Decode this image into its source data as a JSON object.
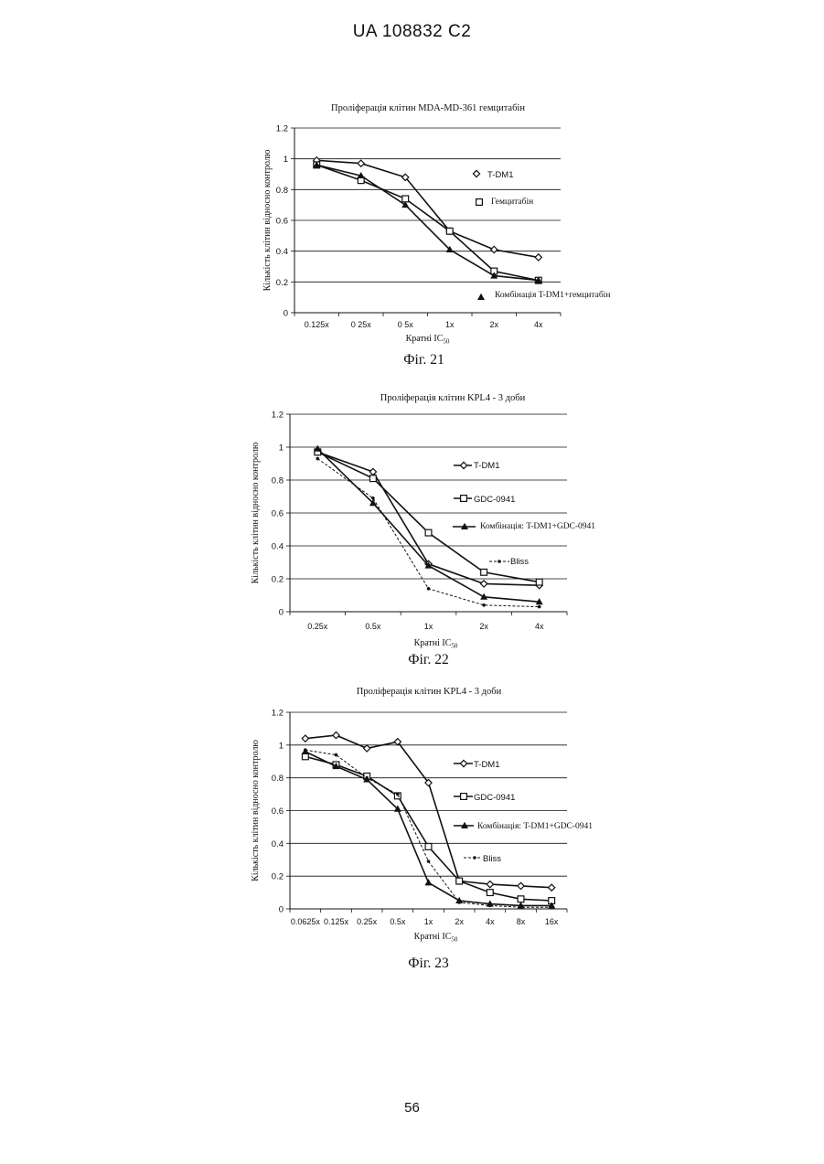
{
  "header": {
    "text": "UA  108832  C2"
  },
  "page_number": "56",
  "chart_data": [
    {
      "type": "line",
      "title": "Проліферація клітин MDA-MD-361 гемцитабін",
      "xlabel": "Кратні IC",
      "xlabel_sub": "50",
      "ylabel": "Кількість клітин відносно контролю",
      "caption": "Фіг. 21",
      "categories": [
        "0.125x",
        "0 25x",
        "0 5x",
        "1x",
        "2x",
        "4x"
      ],
      "yticks": [
        "0",
        "0.2",
        "0.4",
        "0.6",
        "0.8",
        "1",
        "1.2"
      ],
      "ylim": [
        0,
        1.2
      ],
      "grid": true,
      "legend_position": "right",
      "series": [
        {
          "name": "T-DM1",
          "marker": "diamond",
          "legend_marker": "diamond",
          "values": [
            0.99,
            0.97,
            0.88,
            0.53,
            0.41,
            0.36
          ]
        },
        {
          "name": "Гемцитабін",
          "marker": "square",
          "legend_marker": "square",
          "values": [
            0.96,
            0.86,
            0.74,
            0.53,
            0.27,
            0.21
          ]
        },
        {
          "name": "Комбінація  T-DM1+гемцитабін",
          "marker": "triangle",
          "legend_marker": "triangle",
          "values": [
            0.96,
            0.89,
            0.7,
            0.41,
            0.24,
            0.21
          ]
        }
      ]
    },
    {
      "type": "line",
      "title": "Проліферація клітин KPL4 - 3 доби",
      "xlabel": "Кратні IC",
      "xlabel_sub": "50",
      "ylabel": "Кількість клітин відносно контролю",
      "caption": "Фіг. 22",
      "categories": [
        "0.25x",
        "0.5x",
        "1x",
        "2x",
        "4x"
      ],
      "yticks": [
        "0",
        "0.2",
        "0.4",
        "0.6",
        "0.8",
        "1",
        "1.2"
      ],
      "ylim": [
        0,
        1.2
      ],
      "grid": true,
      "legend_position": "right",
      "series": [
        {
          "name": "T-DM1",
          "marker": "diamond",
          "values": [
            0.97,
            0.85,
            0.29,
            0.17,
            0.16
          ]
        },
        {
          "name": "GDC-0941",
          "marker": "square",
          "values": [
            0.97,
            0.81,
            0.48,
            0.24,
            0.18
          ]
        },
        {
          "name": "Комбінація: T-DM1+GDC-0941",
          "marker": "triangle",
          "values": [
            0.99,
            0.66,
            0.28,
            0.09,
            0.06
          ]
        },
        {
          "name": "Bliss",
          "marker": "dot",
          "dashed": true,
          "values": [
            0.93,
            0.69,
            0.14,
            0.04,
            0.03
          ]
        }
      ]
    },
    {
      "type": "line",
      "title": "Проліферація клітин KPL4 - 3 доби",
      "xlabel": "Кратні IC",
      "xlabel_sub": "50",
      "ylabel": "Кількість клітин відносно контролю",
      "caption": "Фіг. 23",
      "categories": [
        "0.0625x",
        "0.125x",
        "0.25x",
        "0.5x",
        "1x",
        "2x",
        "4x",
        "8x",
        "16x"
      ],
      "yticks": [
        "0",
        "0.2",
        "0.4",
        "0.6",
        "0.8",
        "1",
        "1.2"
      ],
      "ylim": [
        0,
        1.2
      ],
      "grid": true,
      "legend_position": "right",
      "series": [
        {
          "name": "T-DM1",
          "marker": "diamond",
          "values": [
            1.04,
            1.06,
            0.98,
            1.02,
            0.77,
            0.17,
            0.15,
            0.14,
            0.13
          ]
        },
        {
          "name": "GDC-0941",
          "marker": "square",
          "values": [
            0.93,
            0.88,
            0.81,
            0.69,
            0.38,
            0.17,
            0.1,
            0.06,
            0.05
          ]
        },
        {
          "name": "Комбінація:  T-DM1+GDC-0941",
          "marker": "triangle",
          "values": [
            0.96,
            0.87,
            0.79,
            0.61,
            0.16,
            0.05,
            0.03,
            0.02,
            0.02
          ]
        },
        {
          "name": "Bliss",
          "marker": "dot",
          "dashed": true,
          "values": [
            0.97,
            0.94,
            0.8,
            0.7,
            0.29,
            0.04,
            0.02,
            0.01,
            0.01
          ]
        }
      ]
    }
  ]
}
